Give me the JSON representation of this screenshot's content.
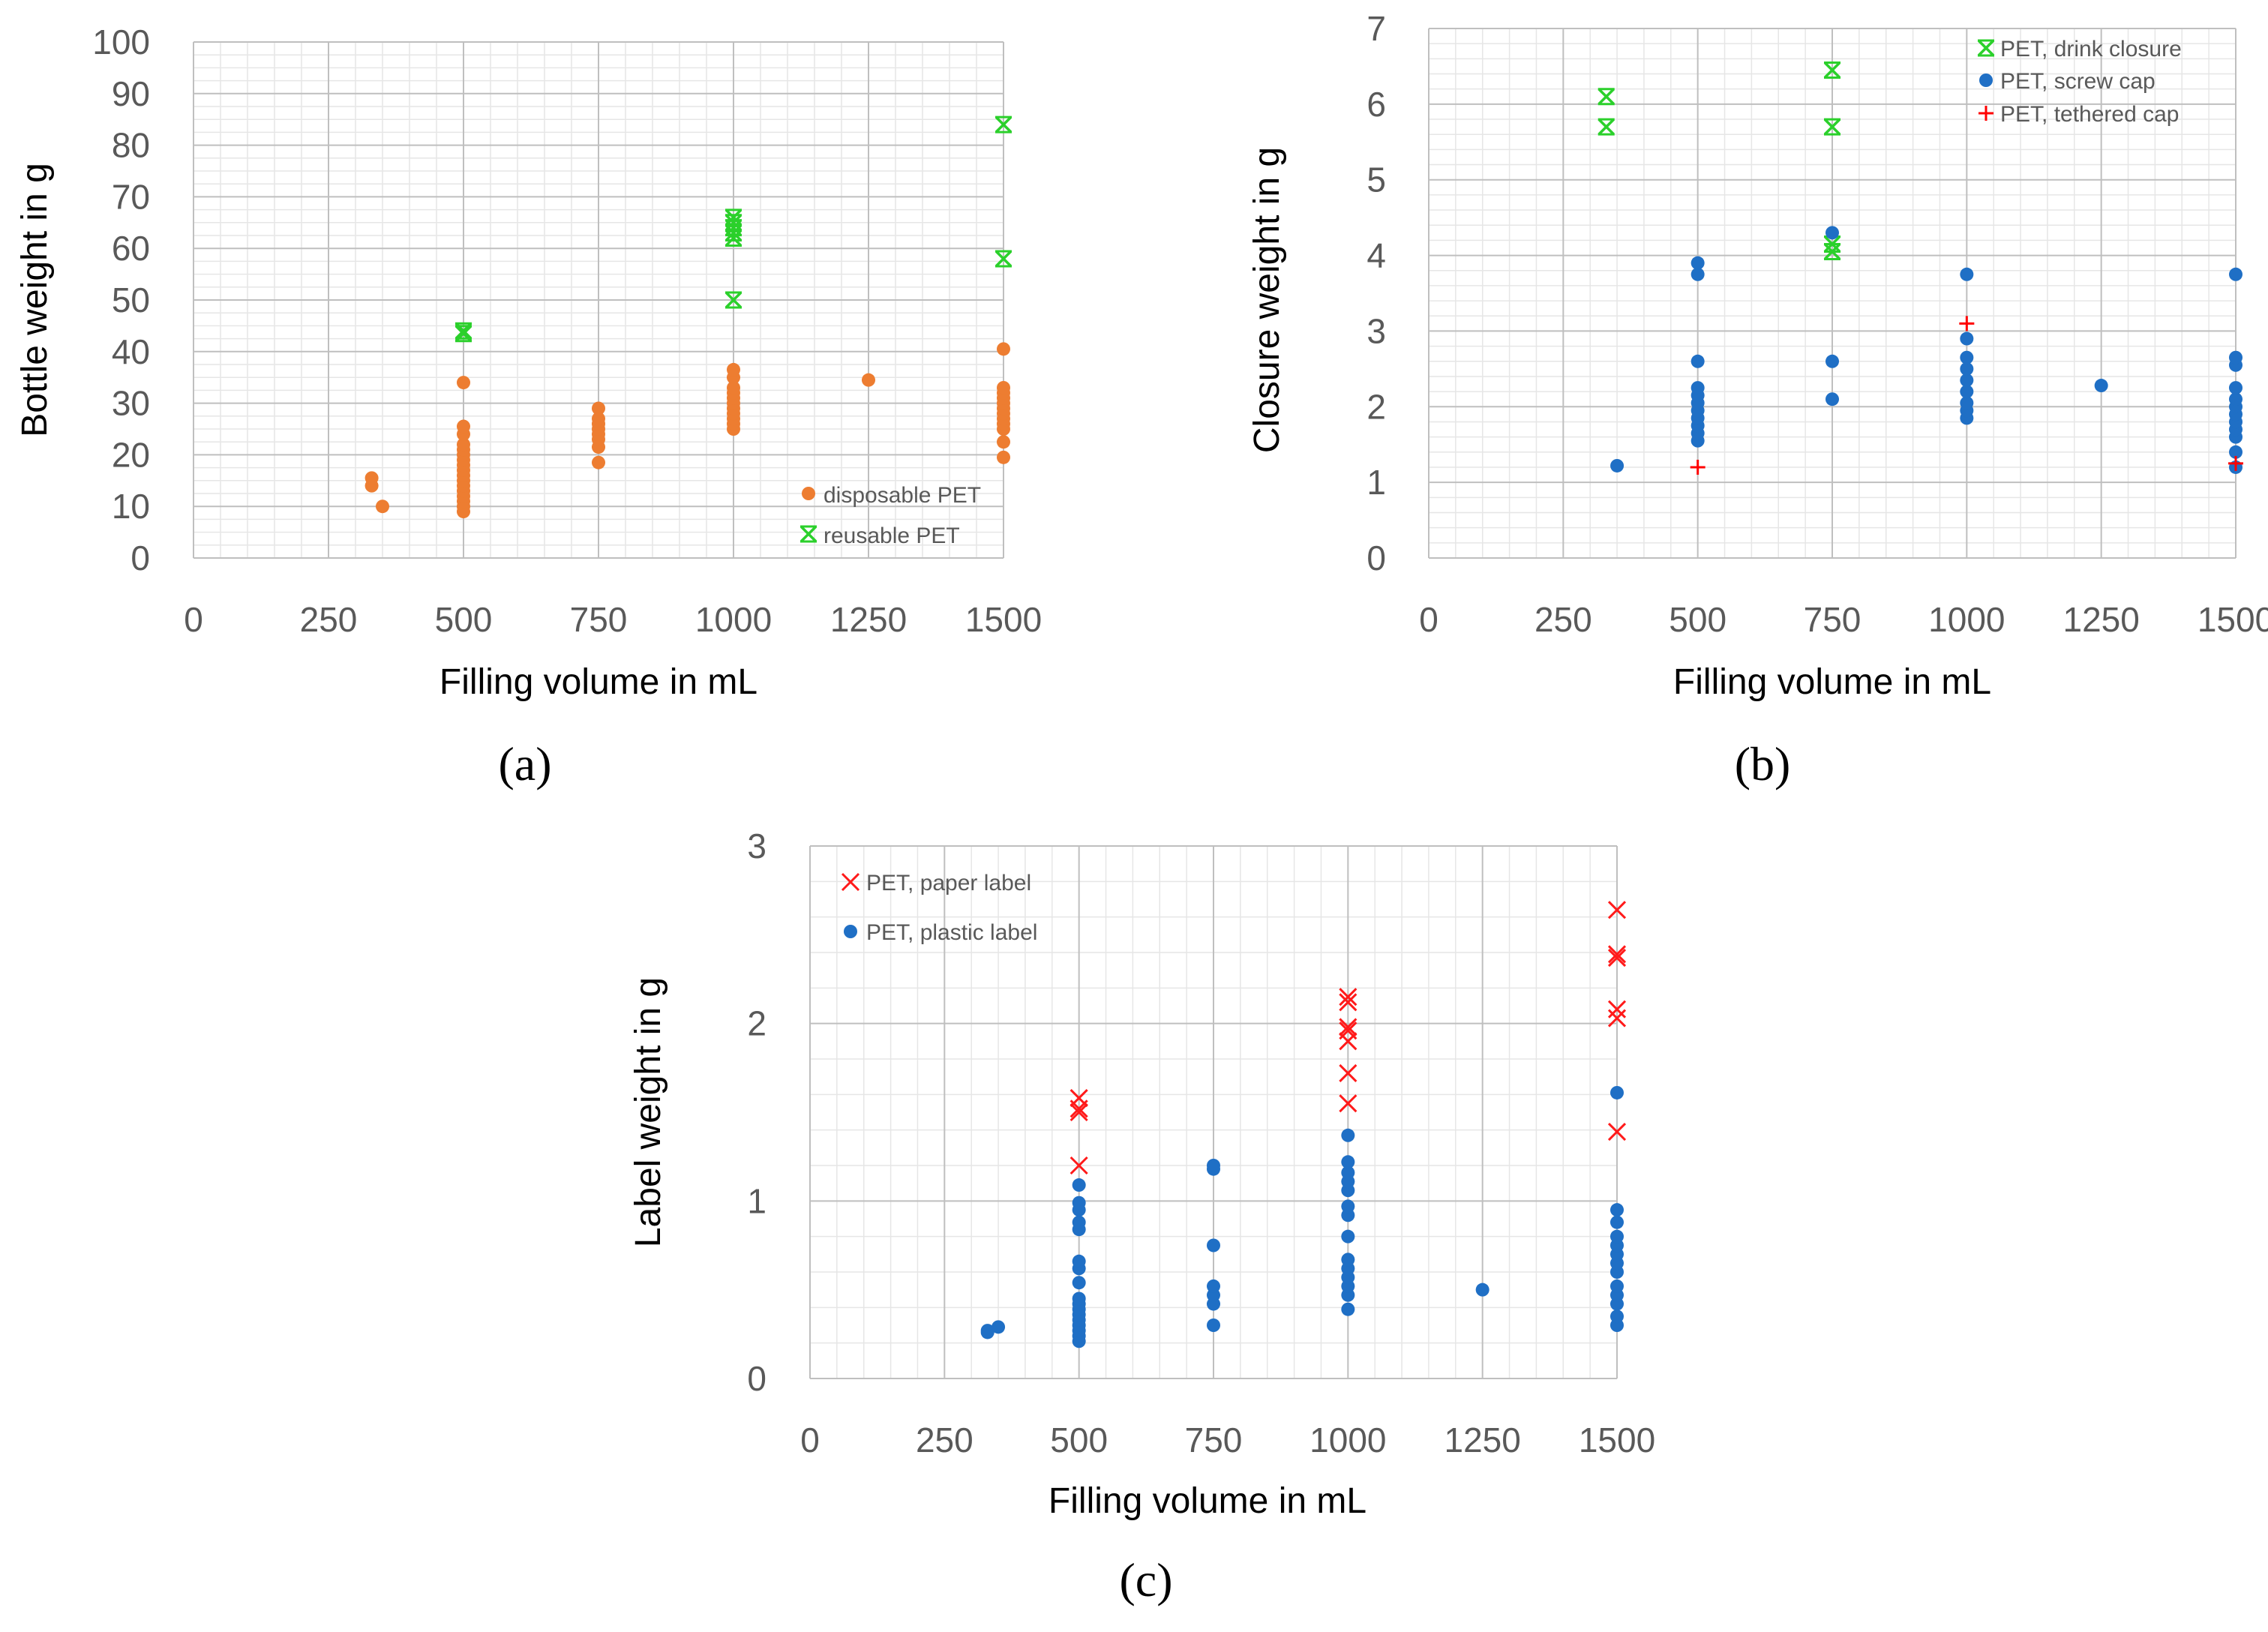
{
  "colors": {
    "disposable": "#ED7D31",
    "reusable": "#2BD02B",
    "drink": "#2BD02B",
    "screw": "#1F6FC5",
    "tethered": "#FF0000",
    "paper": "#FF1A1A",
    "plastic": "#1F6FC5",
    "grid_major": "#BFBFBF",
    "grid_minor": "#E6E6E6"
  },
  "chart_data": [
    {
      "id": "a",
      "type": "scatter",
      "panel_label": "(a)",
      "xlabel": "Filling volume in mL",
      "ylabel": "Bottle weight in g",
      "xlim": [
        0,
        1500
      ],
      "ylim": [
        0,
        100
      ],
      "xticks": [
        0,
        250,
        500,
        750,
        1000,
        1250,
        1500
      ],
      "yticks": [
        0,
        10,
        20,
        30,
        40,
        50,
        60,
        70,
        80,
        90,
        100
      ],
      "xminor": 5,
      "yminor": 4,
      "legend_position": "bottom-right",
      "series": [
        {
          "name": "disposable PET",
          "marker": "dot",
          "color_key": "disposable",
          "points": [
            [
              330,
              14
            ],
            [
              330,
              15.5
            ],
            [
              350,
              10
            ],
            [
              500,
              9
            ],
            [
              500,
              10
            ],
            [
              500,
              11
            ],
            [
              500,
              12
            ],
            [
              500,
              13
            ],
            [
              500,
              14
            ],
            [
              500,
              15
            ],
            [
              500,
              16
            ],
            [
              500,
              17
            ],
            [
              500,
              18
            ],
            [
              500,
              19
            ],
            [
              500,
              20
            ],
            [
              500,
              21
            ],
            [
              500,
              22
            ],
            [
              500,
              24
            ],
            [
              500,
              25.5
            ],
            [
              500,
              34
            ],
            [
              750,
              18.5
            ],
            [
              750,
              21.5
            ],
            [
              750,
              23
            ],
            [
              750,
              24
            ],
            [
              750,
              25
            ],
            [
              750,
              26
            ],
            [
              750,
              27
            ],
            [
              750,
              29
            ],
            [
              1000,
              25
            ],
            [
              1000,
              26
            ],
            [
              1000,
              27
            ],
            [
              1000,
              28
            ],
            [
              1000,
              29
            ],
            [
              1000,
              30
            ],
            [
              1000,
              31
            ],
            [
              1000,
              32
            ],
            [
              1000,
              33
            ],
            [
              1000,
              35
            ],
            [
              1000,
              36.5
            ],
            [
              1250,
              34.5
            ],
            [
              1500,
              19.5
            ],
            [
              1500,
              22.5
            ],
            [
              1500,
              25
            ],
            [
              1500,
              26
            ],
            [
              1500,
              27
            ],
            [
              1500,
              28
            ],
            [
              1500,
              29
            ],
            [
              1500,
              30
            ],
            [
              1500,
              31
            ],
            [
              1500,
              32
            ],
            [
              1500,
              33
            ],
            [
              1500,
              40.5
            ]
          ]
        },
        {
          "name": "reusable PET",
          "marker": "asterisk",
          "color_key": "reusable",
          "points": [
            [
              500,
              43.5
            ],
            [
              500,
              44
            ],
            [
              1000,
              50
            ],
            [
              1000,
              62
            ],
            [
              1000,
              63
            ],
            [
              1000,
              64
            ],
            [
              1000,
              65
            ],
            [
              1000,
              66
            ],
            [
              1500,
              58
            ],
            [
              1500,
              84
            ]
          ]
        }
      ]
    },
    {
      "id": "b",
      "type": "scatter",
      "panel_label": "(b)",
      "xlabel": "Filling volume in mL",
      "ylabel": "Closure weight in g",
      "xlim": [
        0,
        1500
      ],
      "ylim": [
        0,
        7
      ],
      "xticks": [
        0,
        250,
        500,
        750,
        1000,
        1250,
        1500
      ],
      "yticks": [
        0,
        1,
        2,
        3,
        4,
        5,
        6,
        7
      ],
      "xminor": 5,
      "yminor": 5,
      "legend_position": "top-right",
      "series": [
        {
          "name": "PET, drink closure",
          "marker": "asterisk",
          "color_key": "drink",
          "points": [
            [
              330,
              5.7
            ],
            [
              330,
              6.1
            ],
            [
              750,
              4.05
            ],
            [
              750,
              4.15
            ],
            [
              750,
              5.7
            ],
            [
              750,
              6.45
            ]
          ]
        },
        {
          "name": "PET, screw cap",
          "marker": "dot",
          "color_key": "screw",
          "points": [
            [
              350,
              1.22
            ],
            [
              500,
              1.55
            ],
            [
              500,
              1.65
            ],
            [
              500,
              1.75
            ],
            [
              500,
              1.85
            ],
            [
              500,
              1.95
            ],
            [
              500,
              2.05
            ],
            [
              500,
              2.15
            ],
            [
              500,
              2.25
            ],
            [
              500,
              2.6
            ],
            [
              500,
              3.75
            ],
            [
              500,
              3.9
            ],
            [
              750,
              2.1
            ],
            [
              750,
              2.6
            ],
            [
              750,
              4.3
            ],
            [
              1000,
              1.85
            ],
            [
              1000,
              1.95
            ],
            [
              1000,
              2.05
            ],
            [
              1000,
              2.2
            ],
            [
              1000,
              2.35
            ],
            [
              1000,
              2.5
            ],
            [
              1000,
              2.65
            ],
            [
              1000,
              2.9
            ],
            [
              1000,
              3.75
            ],
            [
              1250,
              2.28
            ],
            [
              1500,
              1.2
            ],
            [
              1500,
              1.4
            ],
            [
              1500,
              1.6
            ],
            [
              1500,
              1.7
            ],
            [
              1500,
              1.8
            ],
            [
              1500,
              1.9
            ],
            [
              1500,
              2.0
            ],
            [
              1500,
              2.1
            ],
            [
              1500,
              2.25
            ],
            [
              1500,
              2.55
            ],
            [
              1500,
              2.65
            ],
            [
              1500,
              3.75
            ]
          ]
        },
        {
          "name": "PET, tethered cap",
          "marker": "plus",
          "color_key": "tethered",
          "points": [
            [
              500,
              1.2
            ],
            [
              1000,
              3.1
            ],
            [
              1500,
              1.25
            ]
          ]
        }
      ]
    },
    {
      "id": "c",
      "type": "scatter",
      "panel_label": "(c)",
      "xlabel": "Filling volume in mL",
      "ylabel": "Label weight in g",
      "xlim": [
        0,
        1500
      ],
      "ylim": [
        0,
        3
      ],
      "xticks": [
        0,
        250,
        500,
        750,
        1000,
        1250,
        1500
      ],
      "yticks": [
        0,
        1,
        2,
        3
      ],
      "xminor": 5,
      "yminor": 5,
      "legend_position": "top-left",
      "series": [
        {
          "name": "PET, paper label",
          "marker": "cross",
          "color_key": "paper",
          "points": [
            [
              500,
              1.2
            ],
            [
              500,
              1.5
            ],
            [
              500,
              1.52
            ],
            [
              500,
              1.58
            ],
            [
              1000,
              1.55
            ],
            [
              1000,
              1.72
            ],
            [
              1000,
              1.9
            ],
            [
              1000,
              1.96
            ],
            [
              1000,
              1.98
            ],
            [
              1000,
              2.12
            ],
            [
              1000,
              2.15
            ],
            [
              1500,
              1.39
            ],
            [
              1500,
              2.03
            ],
            [
              1500,
              2.08
            ],
            [
              1500,
              2.37
            ],
            [
              1500,
              2.39
            ],
            [
              1500,
              2.64
            ]
          ]
        },
        {
          "name": "PET, plastic label",
          "marker": "dot",
          "color_key": "plastic",
          "points": [
            [
              330,
              0.26
            ],
            [
              330,
              0.27
            ],
            [
              350,
              0.29
            ],
            [
              500,
              0.21
            ],
            [
              500,
              0.24
            ],
            [
              500,
              0.27
            ],
            [
              500,
              0.3
            ],
            [
              500,
              0.33
            ],
            [
              500,
              0.36
            ],
            [
              500,
              0.39
            ],
            [
              500,
              0.42
            ],
            [
              500,
              0.45
            ],
            [
              500,
              0.54
            ],
            [
              500,
              0.62
            ],
            [
              500,
              0.66
            ],
            [
              500,
              0.84
            ],
            [
              500,
              0.88
            ],
            [
              500,
              0.95
            ],
            [
              500,
              0.99
            ],
            [
              500,
              1.09
            ],
            [
              750,
              0.3
            ],
            [
              750,
              0.42
            ],
            [
              750,
              0.47
            ],
            [
              750,
              0.52
            ],
            [
              750,
              0.75
            ],
            [
              750,
              1.18
            ],
            [
              750,
              1.2
            ],
            [
              1000,
              0.39
            ],
            [
              1000,
              0.47
            ],
            [
              1000,
              0.52
            ],
            [
              1000,
              0.57
            ],
            [
              1000,
              0.62
            ],
            [
              1000,
              0.67
            ],
            [
              1000,
              0.8
            ],
            [
              1000,
              0.92
            ],
            [
              1000,
              0.97
            ],
            [
              1000,
              1.06
            ],
            [
              1000,
              1.11
            ],
            [
              1000,
              1.16
            ],
            [
              1000,
              1.22
            ],
            [
              1000,
              1.37
            ],
            [
              1250,
              0.5
            ],
            [
              1500,
              0.3
            ],
            [
              1500,
              0.35
            ],
            [
              1500,
              0.42
            ],
            [
              1500,
              0.47
            ],
            [
              1500,
              0.52
            ],
            [
              1500,
              0.6
            ],
            [
              1500,
              0.65
            ],
            [
              1500,
              0.7
            ],
            [
              1500,
              0.75
            ],
            [
              1500,
              0.8
            ],
            [
              1500,
              0.88
            ],
            [
              1500,
              0.95
            ],
            [
              1500,
              1.61
            ]
          ]
        }
      ]
    }
  ]
}
